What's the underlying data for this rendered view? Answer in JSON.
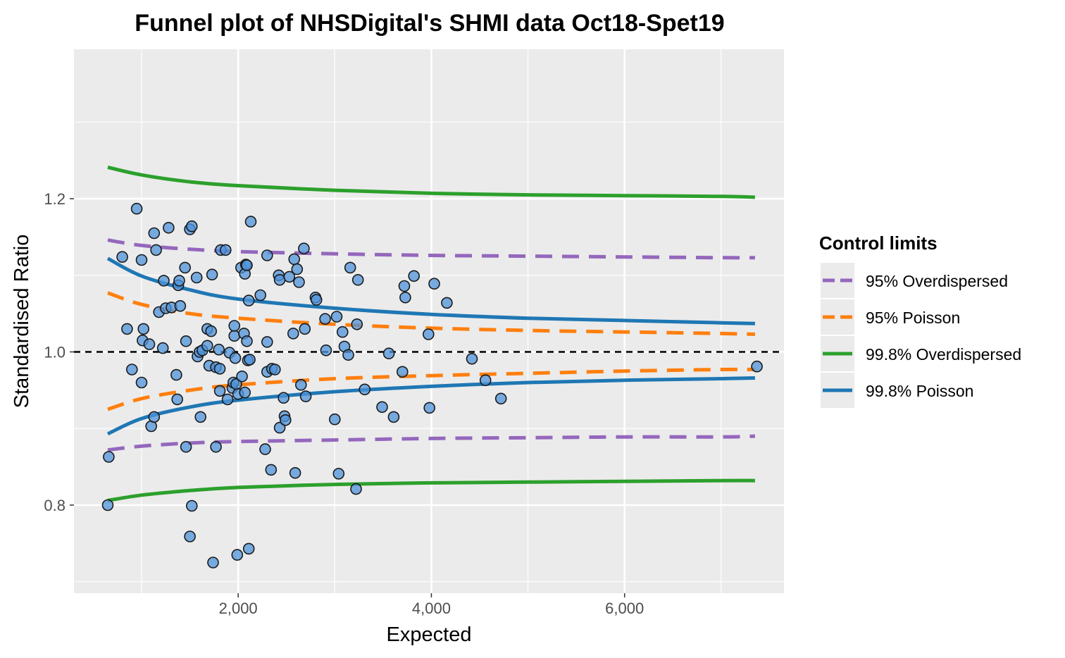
{
  "chart_data": {
    "type": "scatter",
    "title": "Funnel plot of NHSDigital's SHMI data Oct18-Spet19",
    "xlabel": "Expected",
    "ylabel": "Standardised Ratio",
    "xlim": [
      300,
      7650
    ],
    "ylim": [
      0.685,
      1.395
    ],
    "x_ticks": [
      2000,
      4000,
      6000
    ],
    "x_tick_labels": [
      "2,000",
      "4,000",
      "6,000"
    ],
    "x_minor_ticks": [
      1000,
      3000,
      5000,
      7000
    ],
    "y_ticks": [
      0.8,
      1.0,
      1.2
    ],
    "y_tick_labels": [
      "0.8",
      "1.0",
      "1.2"
    ],
    "y_minor_ticks": [
      0.7,
      0.9,
      1.1,
      1.3
    ],
    "grid": true,
    "reference_line": 1.0,
    "colors": {
      "panel": "#ebebeb",
      "grid": "#ffffff",
      "points": "#4f93d9",
      "overdispersed_95": "#9467bd",
      "poisson_95": "#ff7f0e",
      "overdispersed_998": "#2ca02c",
      "poisson_998": "#1f77b4"
    },
    "legend": {
      "title": "Control limits",
      "position": "right",
      "entries": [
        "95% Overdispersed",
        "95% Poisson",
        "99.8% Overdispersed",
        "99.8% Poisson"
      ]
    },
    "control_limits": {
      "x": [
        650,
        1000,
        1500,
        2000,
        3000,
        4000,
        5000,
        6000,
        7000,
        7350
      ],
      "series": [
        {
          "name": "99.8% Overdispersed",
          "dashed": false,
          "upper": [
            1.241,
            1.231,
            1.222,
            1.217,
            1.211,
            1.207,
            1.205,
            1.204,
            1.203,
            1.202
          ],
          "lower": [
            0.806,
            0.813,
            0.819,
            0.823,
            0.827,
            0.829,
            0.83,
            0.831,
            0.832,
            0.832
          ]
        },
        {
          "name": "99.8% Poisson",
          "dashed": false,
          "upper": [
            1.122,
            1.099,
            1.081,
            1.069,
            1.057,
            1.049,
            1.044,
            1.041,
            1.038,
            1.037
          ],
          "lower": [
            0.893,
            0.913,
            0.928,
            0.937,
            0.948,
            0.955,
            0.96,
            0.963,
            0.965,
            0.966
          ]
        },
        {
          "name": "95% Overdispersed",
          "dashed": true,
          "upper": [
            1.146,
            1.139,
            1.134,
            1.131,
            1.128,
            1.126,
            1.125,
            1.124,
            1.123,
            1.123
          ],
          "lower": [
            0.872,
            0.877,
            0.881,
            0.883,
            0.885,
            0.887,
            0.888,
            0.889,
            0.889,
            0.89
          ]
        },
        {
          "name": "95% Poisson",
          "dashed": true,
          "upper": [
            1.077,
            1.062,
            1.05,
            1.044,
            1.036,
            1.031,
            1.028,
            1.026,
            1.024,
            1.023
          ],
          "lower": [
            0.925,
            0.939,
            0.95,
            0.957,
            0.965,
            0.969,
            0.972,
            0.975,
            0.977,
            0.977
          ]
        }
      ]
    },
    "points": [
      [
        650,
        0.8
      ],
      [
        660,
        0.863
      ],
      [
        800,
        1.124
      ],
      [
        850,
        1.03
      ],
      [
        900,
        0.977
      ],
      [
        950,
        1.187
      ],
      [
        1000,
        0.96
      ],
      [
        1000,
        1.12
      ],
      [
        1010,
        1.015
      ],
      [
        1020,
        1.03
      ],
      [
        1080,
        1.01
      ],
      [
        1100,
        0.903
      ],
      [
        1130,
        0.915
      ],
      [
        1130,
        1.155
      ],
      [
        1150,
        1.133
      ],
      [
        1180,
        1.052
      ],
      [
        1220,
        1.005
      ],
      [
        1230,
        1.093
      ],
      [
        1250,
        1.057
      ],
      [
        1280,
        1.162
      ],
      [
        1310,
        1.058
      ],
      [
        1360,
        0.97
      ],
      [
        1370,
        0.938
      ],
      [
        1380,
        1.087
      ],
      [
        1390,
        1.093
      ],
      [
        1400,
        1.06
      ],
      [
        1450,
        1.11
      ],
      [
        1460,
        1.014
      ],
      [
        1460,
        0.876
      ],
      [
        1500,
        1.16
      ],
      [
        1500,
        0.759
      ],
      [
        1520,
        1.164
      ],
      [
        1520,
        0.799
      ],
      [
        1570,
        1.097
      ],
      [
        1580,
        0.994
      ],
      [
        1600,
        1.0
      ],
      [
        1610,
        0.915
      ],
      [
        1630,
        1.002
      ],
      [
        1680,
        1.03
      ],
      [
        1680,
        1.008
      ],
      [
        1700,
        0.982
      ],
      [
        1720,
        1.027
      ],
      [
        1730,
        1.101
      ],
      [
        1740,
        0.725
      ],
      [
        1770,
        0.876
      ],
      [
        1770,
        0.98
      ],
      [
        1800,
        1.003
      ],
      [
        1810,
        0.978
      ],
      [
        1810,
        0.949
      ],
      [
        1820,
        1.133
      ],
      [
        1870,
        1.133
      ],
      [
        1890,
        0.938
      ],
      [
        1910,
        0.999
      ],
      [
        1940,
        0.953
      ],
      [
        1950,
        0.96
      ],
      [
        1960,
        1.021
      ],
      [
        1960,
        1.034
      ],
      [
        1970,
        0.992
      ],
      [
        1980,
        0.958
      ],
      [
        1990,
        0.735
      ],
      [
        2000,
        0.945
      ],
      [
        2030,
        1.11
      ],
      [
        2040,
        0.968
      ],
      [
        2060,
        1.024
      ],
      [
        2070,
        1.102
      ],
      [
        2070,
        0.947
      ],
      [
        2080,
        1.114
      ],
      [
        2090,
        1.113
      ],
      [
        2090,
        1.014
      ],
      [
        2100,
        0.989
      ],
      [
        2110,
        1.067
      ],
      [
        2120,
        0.99
      ],
      [
        2110,
        0.743
      ],
      [
        2130,
        1.17
      ],
      [
        2230,
        1.074
      ],
      [
        2280,
        0.873
      ],
      [
        2300,
        0.974
      ],
      [
        2300,
        1.126
      ],
      [
        2300,
        1.013
      ],
      [
        2340,
        0.846
      ],
      [
        2350,
        0.978
      ],
      [
        2380,
        0.977
      ],
      [
        2420,
        1.1
      ],
      [
        2430,
        1.094
      ],
      [
        2430,
        0.901
      ],
      [
        2470,
        0.94
      ],
      [
        2480,
        0.916
      ],
      [
        2490,
        0.911
      ],
      [
        2530,
        1.098
      ],
      [
        2570,
        1.024
      ],
      [
        2580,
        1.121
      ],
      [
        2590,
        0.842
      ],
      [
        2610,
        1.108
      ],
      [
        2630,
        1.091
      ],
      [
        2650,
        0.957
      ],
      [
        2680,
        1.135
      ],
      [
        2690,
        1.03
      ],
      [
        2700,
        0.942
      ],
      [
        2800,
        1.071
      ],
      [
        2810,
        1.068
      ],
      [
        2900,
        1.043
      ],
      [
        2910,
        1.002
      ],
      [
        3000,
        0.912
      ],
      [
        3020,
        1.046
      ],
      [
        3040,
        0.841
      ],
      [
        3080,
        1.026
      ],
      [
        3100,
        1.007
      ],
      [
        3140,
        0.996
      ],
      [
        3160,
        1.11
      ],
      [
        3220,
        0.821
      ],
      [
        3230,
        1.036
      ],
      [
        3240,
        1.094
      ],
      [
        3310,
        0.951
      ],
      [
        3490,
        0.928
      ],
      [
        3560,
        0.998
      ],
      [
        3610,
        0.915
      ],
      [
        3700,
        0.974
      ],
      [
        3720,
        1.086
      ],
      [
        3730,
        1.071
      ],
      [
        3820,
        1.099
      ],
      [
        3970,
        1.023
      ],
      [
        3980,
        0.927
      ],
      [
        4030,
        1.089
      ],
      [
        4160,
        1.064
      ],
      [
        4420,
        0.991
      ],
      [
        4560,
        0.963
      ],
      [
        4720,
        0.939
      ],
      [
        7370,
        0.981
      ]
    ]
  }
}
